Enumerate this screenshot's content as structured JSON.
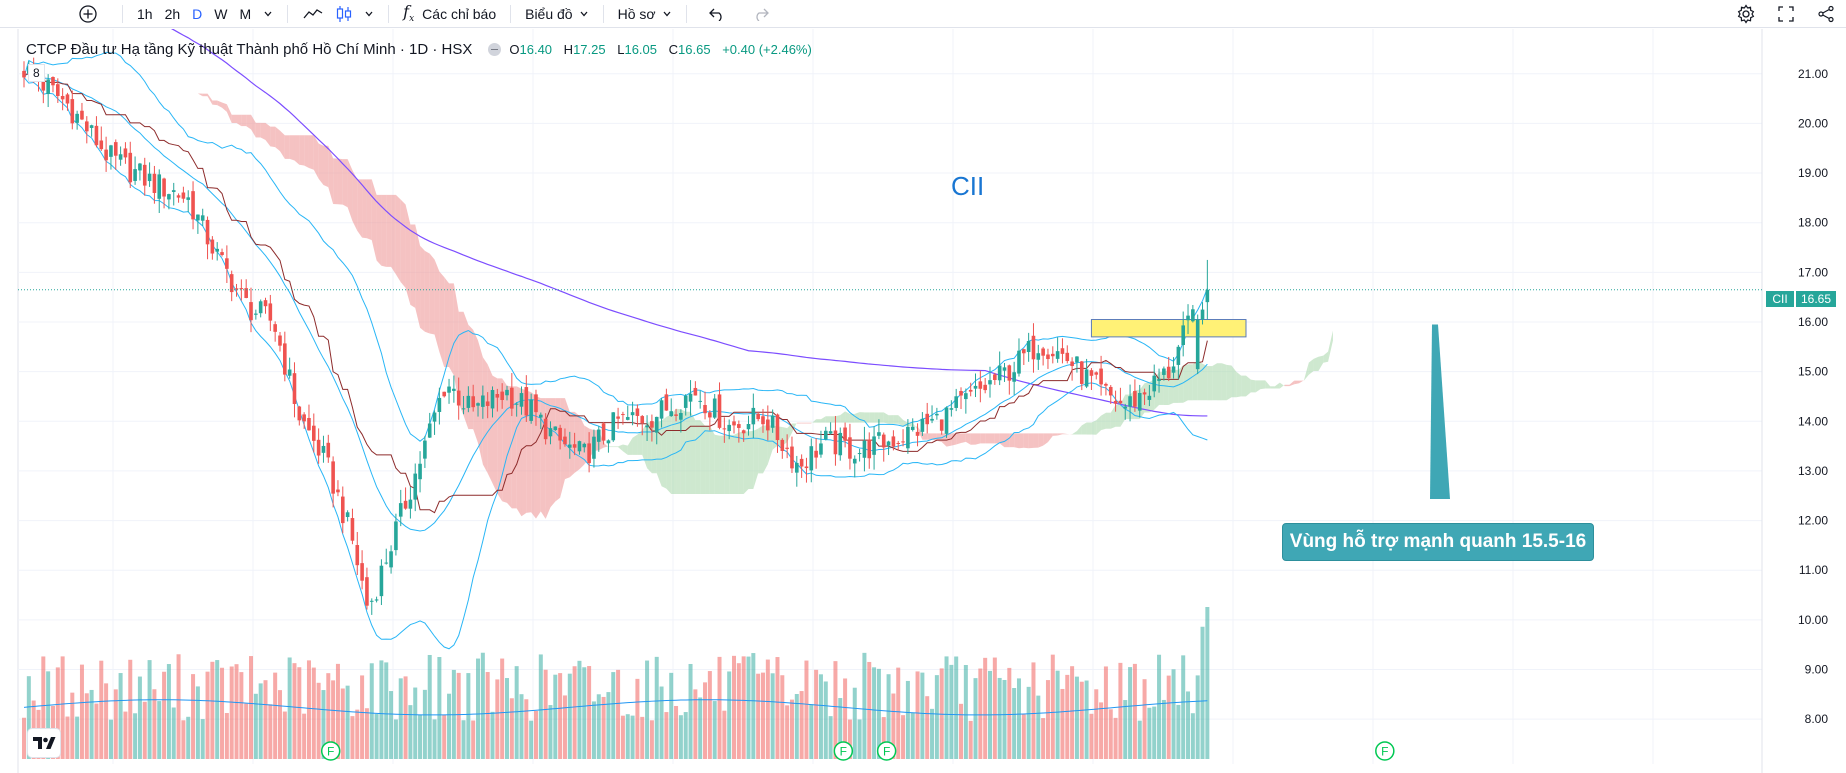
{
  "toolbar": {
    "add_symbol_icon": "plus-circle-icon",
    "intervals": [
      {
        "label": "1h",
        "active": false
      },
      {
        "label": "2h",
        "active": false
      },
      {
        "label": "D",
        "active": true
      },
      {
        "label": "W",
        "active": false
      },
      {
        "label": "M",
        "active": false
      }
    ],
    "indicators_label": "Các chỉ báo",
    "chart_type_label": "Biểu đồ",
    "profile_label": "Hồ sơ",
    "right_icons": [
      "gear-icon",
      "fullscreen-icon",
      "share-icon"
    ]
  },
  "legend": {
    "title": "CTCP Đầu tư Hạ tầng Kỹ thuật Thành phố Hồ Chí Minh · 1D · HSX",
    "open_key": "O",
    "open": "16.40",
    "high_key": "H",
    "high": "17.25",
    "low_key": "L",
    "low": "16.05",
    "close_key": "C",
    "close": "16.65",
    "change": "+0.40 (+2.46%)",
    "sub": "8"
  },
  "annotations": {
    "symbol_text": "CII",
    "callout_text": "Vùng hỗ trợ mạnh quanh 15.5-16"
  },
  "price_tags": {
    "symbol": "CII",
    "price": "16.65"
  },
  "logo": "TV",
  "colors": {
    "up": "#26a69a",
    "down": "#ef5350",
    "accent": "#2962ff",
    "support_zone": "#fff176",
    "callout": "#3fa7b5",
    "cloud_bull": "#a5d6a7",
    "cloud_bear": "#ef9a9a",
    "ma": "#7c4dff",
    "bollinger": "#29b6f6",
    "kijun": "#8d2b2b"
  },
  "chart_data": {
    "type": "candlestick",
    "y_axis_ticks": [
      "21.00",
      "20.00",
      "19.00",
      "18.00",
      "17.00",
      "16.00",
      "15.00",
      "14.00",
      "13.00",
      "12.00",
      "11.00",
      "10.00",
      "9.00",
      "8.00"
    ],
    "ylim": [
      7.5,
      21.7
    ],
    "last_price": 16.65,
    "support_zone": [
      15.7,
      16.05
    ],
    "earnings_markers": [
      "F",
      "F",
      "F",
      "F"
    ],
    "earnings_marker_positions": [
      0.175,
      0.53,
      0.56,
      0.905
    ]
  }
}
